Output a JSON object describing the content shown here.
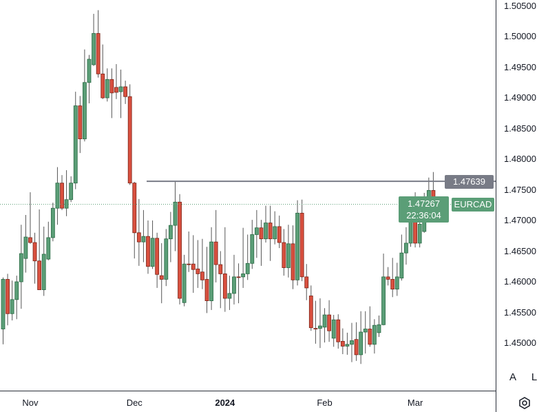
{
  "chart_data": {
    "type": "candlestick",
    "symbol": "EURCAD",
    "price_axis": {
      "ylim": [
        1.4437,
        1.5065
      ],
      "ticks": [
        "1.50500",
        "1.50000",
        "1.49500",
        "1.49000",
        "1.48500",
        "1.48000",
        "1.47500",
        "1.47000",
        "1.46500",
        "1.46000",
        "1.45500",
        "1.45000"
      ]
    },
    "time_axis": {
      "ticks": [
        {
          "label": "Nov",
          "bar": 6,
          "bold": false
        },
        {
          "label": "Dec",
          "bar": 29,
          "bold": false
        },
        {
          "label": "2024",
          "bar": 49,
          "bold": true
        },
        {
          "label": "Feb",
          "bar": 71,
          "bold": false
        },
        {
          "label": "Mar",
          "bar": 91,
          "bold": false
        }
      ]
    },
    "horizontal_line": {
      "price": 1.47639,
      "label": "1.47639"
    },
    "last_price": {
      "price": 1.47267,
      "label": "1.47267",
      "countdown": "22:36:04"
    },
    "colors": {
      "up": "#5b9e77",
      "up_border": "#2a6a44",
      "down": "#d9503f",
      "down_border": "#7b2418",
      "wick": "#555555",
      "hline": "#787b86",
      "last_price": "#5b9e77"
    },
    "grid": false,
    "candles": [
      [
        1.4523,
        1.4607,
        1.4498,
        1.4604
      ],
      [
        1.4604,
        1.4613,
        1.4529,
        1.4548
      ],
      [
        1.4548,
        1.4602,
        1.4537,
        1.4571
      ],
      [
        1.4571,
        1.461,
        1.4539,
        1.46
      ],
      [
        1.46,
        1.4693,
        1.4556,
        1.4646
      ],
      [
        1.4638,
        1.4709,
        1.4615,
        1.4673
      ],
      [
        1.4672,
        1.4746,
        1.4662,
        1.4664
      ],
      [
        1.4664,
        1.468,
        1.4597,
        1.4634
      ],
      [
        1.4634,
        1.4718,
        1.4587,
        1.4587
      ],
      [
        1.4587,
        1.469,
        1.4577,
        1.4645
      ],
      [
        1.4637,
        1.4698,
        1.4635,
        1.4672
      ],
      [
        1.4672,
        1.4729,
        1.4666,
        1.472
      ],
      [
        1.472,
        1.4787,
        1.4693,
        1.4761
      ],
      [
        1.4761,
        1.4774,
        1.4717,
        1.472
      ],
      [
        1.472,
        1.4782,
        1.4707,
        1.4734
      ],
      [
        1.4734,
        1.4772,
        1.473,
        1.4761
      ],
      [
        1.4761,
        1.491,
        1.4751,
        1.4887
      ],
      [
        1.4887,
        1.4903,
        1.481,
        1.4833
      ],
      [
        1.4833,
        1.4979,
        1.4829,
        1.4925
      ],
      [
        1.4925,
        1.497,
        1.4891,
        1.4963
      ],
      [
        1.4954,
        1.5037,
        1.4952,
        1.5005
      ],
      [
        1.5005,
        1.5043,
        1.4933,
        1.4939
      ],
      [
        1.4939,
        1.4987,
        1.4898,
        1.49
      ],
      [
        1.49,
        1.4948,
        1.4894,
        1.493
      ],
      [
        1.493,
        1.4948,
        1.4867,
        1.4908
      ],
      [
        1.4917,
        1.4955,
        1.4898,
        1.4909
      ],
      [
        1.491,
        1.4946,
        1.4867,
        1.4918
      ],
      [
        1.4918,
        1.4928,
        1.489,
        1.4902
      ],
      [
        1.4902,
        1.4922,
        1.4758,
        1.4761
      ],
      [
        1.4761,
        1.4763,
        1.4638,
        1.468
      ],
      [
        1.468,
        1.4735,
        1.4626,
        1.4665
      ],
      [
        1.4665,
        1.4717,
        1.4632,
        1.4674
      ],
      [
        1.4674,
        1.47,
        1.4613,
        1.4625
      ],
      [
        1.4625,
        1.47,
        1.4621,
        1.4671
      ],
      [
        1.4671,
        1.468,
        1.459,
        1.4612
      ],
      [
        1.461,
        1.4663,
        1.4565,
        1.4604
      ],
      [
        1.4604,
        1.4686,
        1.4593,
        1.467
      ],
      [
        1.467,
        1.4714,
        1.4632,
        1.4692
      ],
      [
        1.4692,
        1.4763,
        1.465,
        1.473
      ],
      [
        1.473,
        1.4743,
        1.4563,
        1.4573
      ],
      [
        1.4566,
        1.4644,
        1.456,
        1.4629
      ],
      [
        1.4629,
        1.4682,
        1.4616,
        1.4628
      ],
      [
        1.4629,
        1.4676,
        1.4582,
        1.462
      ],
      [
        1.4621,
        1.4668,
        1.459,
        1.4613
      ],
      [
        1.4616,
        1.467,
        1.4588,
        1.4603
      ],
      [
        1.4604,
        1.4657,
        1.4549,
        1.4569
      ],
      [
        1.4569,
        1.4689,
        1.4554,
        1.4665
      ],
      [
        1.4665,
        1.4717,
        1.4599,
        1.4628
      ],
      [
        1.4628,
        1.465,
        1.4557,
        1.4613
      ],
      [
        1.4613,
        1.4689,
        1.4551,
        1.4573
      ],
      [
        1.4573,
        1.461,
        1.4554,
        1.4581
      ],
      [
        1.4581,
        1.4644,
        1.4563,
        1.4608
      ],
      [
        1.4608,
        1.463,
        1.4565,
        1.4607
      ],
      [
        1.4608,
        1.4688,
        1.459,
        1.4613
      ],
      [
        1.4613,
        1.4677,
        1.4603,
        1.463
      ],
      [
        1.463,
        1.4701,
        1.4621,
        1.4677
      ],
      [
        1.4677,
        1.4717,
        1.4639,
        1.4688
      ],
      [
        1.4688,
        1.4701,
        1.4626,
        1.467
      ],
      [
        1.467,
        1.4724,
        1.4664,
        1.4696
      ],
      [
        1.4696,
        1.4724,
        1.4634,
        1.467
      ],
      [
        1.467,
        1.4715,
        1.4661,
        1.469
      ],
      [
        1.469,
        1.4708,
        1.4655,
        1.4664
      ],
      [
        1.4664,
        1.4686,
        1.461,
        1.4623
      ],
      [
        1.4623,
        1.4693,
        1.4607,
        1.4662
      ],
      [
        1.4662,
        1.4692,
        1.4588,
        1.4603
      ],
      [
        1.4603,
        1.4733,
        1.4594,
        1.4712
      ],
      [
        1.4712,
        1.4734,
        1.4601,
        1.4608
      ],
      [
        1.4608,
        1.4629,
        1.457,
        1.459
      ],
      [
        1.4577,
        1.4594,
        1.452,
        1.4525
      ],
      [
        1.4524,
        1.4569,
        1.4499,
        1.4523
      ],
      [
        1.4524,
        1.4573,
        1.4492,
        1.4528
      ],
      [
        1.4526,
        1.4557,
        1.4501,
        1.4546
      ],
      [
        1.4546,
        1.457,
        1.4502,
        1.452
      ],
      [
        1.4508,
        1.4546,
        1.4494,
        1.4538
      ],
      [
        1.4538,
        1.4547,
        1.4491,
        1.4502
      ],
      [
        1.4503,
        1.4524,
        1.4482,
        1.4495
      ],
      [
        1.4495,
        1.4517,
        1.4481,
        1.4498
      ],
      [
        1.4498,
        1.4533,
        1.4469,
        1.4504
      ],
      [
        1.4506,
        1.4534,
        1.4471,
        1.4481
      ],
      [
        1.4481,
        1.4552,
        1.4466,
        1.4518
      ],
      [
        1.4518,
        1.4552,
        1.4483,
        1.4523
      ],
      [
        1.4523,
        1.456,
        1.4494,
        1.4498
      ],
      [
        1.4498,
        1.4539,
        1.4483,
        1.4529
      ],
      [
        1.4517,
        1.4545,
        1.451,
        1.453
      ],
      [
        1.453,
        1.4646,
        1.4529,
        1.4608
      ],
      [
        1.4608,
        1.4624,
        1.4594,
        1.4604
      ],
      [
        1.4604,
        1.4639,
        1.4575,
        1.4588
      ],
      [
        1.4588,
        1.4631,
        1.4577,
        1.4608
      ],
      [
        1.4606,
        1.4677,
        1.4602,
        1.4647
      ],
      [
        1.4647,
        1.4689,
        1.4628,
        1.4663
      ],
      [
        1.4663,
        1.4718,
        1.4657,
        1.4708
      ],
      [
        1.4708,
        1.4746,
        1.4656,
        1.4663
      ],
      [
        1.4663,
        1.4702,
        1.4656,
        1.4694
      ],
      [
        1.4682,
        1.4745,
        1.468,
        1.4729
      ],
      [
        1.4729,
        1.477,
        1.4719,
        1.4749
      ],
      [
        1.4749,
        1.4779,
        1.4719,
        1.4726
      ],
      [
        1.4725,
        1.473,
        1.4717,
        1.47267
      ]
    ]
  },
  "controls": {
    "auto_label": "A",
    "log_label": "L",
    "settings_icon": "gear-icon"
  }
}
